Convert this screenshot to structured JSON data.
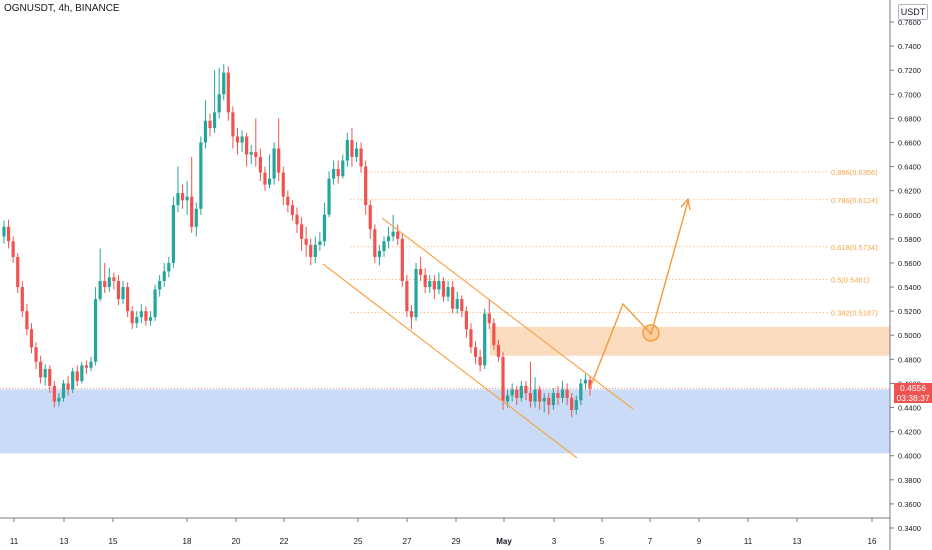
{
  "header": {
    "symbol_line": "OGNUSDT, 4h, BINANCE"
  },
  "currency_badge": "USDT",
  "price_tag": {
    "price": "0.4556",
    "countdown": "03:38:37"
  },
  "colors": {
    "up": "#26a69a",
    "down": "#ef5350",
    "support_zone": "#c9dbf6",
    "resistance_zone": "#fcdcbf",
    "fib": "#f7a54a",
    "channel": "#f7a54a",
    "projection": "#f59a3a",
    "axis_text": "#131722",
    "axis_line": "#787b86"
  },
  "chart_data": {
    "type": "candlestick",
    "title": "OGNUSDT, 4h, BINANCE",
    "ylim": [
      0.334,
      0.775
    ],
    "y_ticks": [
      "0.7600",
      "0.7400",
      "0.7200",
      "0.7000",
      "0.6800",
      "0.6600",
      "0.6400",
      "0.6200",
      "0.6000",
      "0.5800",
      "0.5600",
      "0.5400",
      "0.5200",
      "0.5000",
      "0.4800",
      "0.4600",
      "0.4400",
      "0.4200",
      "0.4000",
      "0.3800",
      "0.3600",
      "0.3400"
    ],
    "x_ticks": [
      "11",
      "13",
      "15",
      "18",
      "20",
      "22",
      "25",
      "27",
      "29",
      "May",
      "3",
      "5",
      "7",
      "9",
      "11",
      "13",
      "16"
    ],
    "candles": [
      [
        0.582,
        0.59,
        0.595,
        0.576
      ],
      [
        0.59,
        0.578,
        0.596,
        0.572
      ],
      [
        0.578,
        0.565,
        0.582,
        0.56
      ],
      [
        0.565,
        0.54,
        0.568,
        0.535
      ],
      [
        0.54,
        0.52,
        0.545,
        0.515
      ],
      [
        0.52,
        0.505,
        0.526,
        0.5
      ],
      [
        0.505,
        0.49,
        0.51,
        0.485
      ],
      [
        0.49,
        0.478,
        0.494,
        0.472
      ],
      [
        0.478,
        0.465,
        0.483,
        0.46
      ],
      [
        0.465,
        0.472,
        0.476,
        0.458
      ],
      [
        0.472,
        0.458,
        0.475,
        0.452
      ],
      [
        0.458,
        0.445,
        0.462,
        0.44
      ],
      [
        0.445,
        0.448,
        0.452,
        0.441
      ],
      [
        0.448,
        0.46,
        0.463,
        0.445
      ],
      [
        0.46,
        0.455,
        0.466,
        0.45
      ],
      [
        0.455,
        0.47,
        0.473,
        0.452
      ],
      [
        0.47,
        0.462,
        0.475,
        0.458
      ],
      [
        0.462,
        0.475,
        0.478,
        0.46
      ],
      [
        0.475,
        0.473,
        0.479,
        0.468
      ],
      [
        0.473,
        0.478,
        0.482,
        0.47
      ],
      [
        0.478,
        0.53,
        0.54,
        0.475
      ],
      [
        0.53,
        0.545,
        0.572,
        0.528
      ],
      [
        0.545,
        0.54,
        0.56,
        0.535
      ],
      [
        0.54,
        0.548,
        0.556,
        0.536
      ],
      [
        0.548,
        0.545,
        0.552,
        0.538
      ],
      [
        0.545,
        0.53,
        0.55,
        0.525
      ],
      [
        0.53,
        0.54,
        0.545,
        0.526
      ],
      [
        0.54,
        0.52,
        0.544,
        0.515
      ],
      [
        0.52,
        0.51,
        0.524,
        0.505
      ],
      [
        0.51,
        0.515,
        0.52,
        0.506
      ],
      [
        0.515,
        0.52,
        0.526,
        0.51
      ],
      [
        0.52,
        0.512,
        0.524,
        0.508
      ],
      [
        0.512,
        0.515,
        0.52,
        0.508
      ],
      [
        0.515,
        0.538,
        0.542,
        0.512
      ],
      [
        0.538,
        0.545,
        0.55,
        0.532
      ],
      [
        0.545,
        0.553,
        0.56,
        0.54
      ],
      [
        0.553,
        0.56,
        0.565,
        0.548
      ],
      [
        0.56,
        0.608,
        0.615,
        0.556
      ],
      [
        0.608,
        0.618,
        0.64,
        0.602
      ],
      [
        0.618,
        0.612,
        0.625,
        0.605
      ],
      [
        0.612,
        0.615,
        0.628,
        0.6
      ],
      [
        0.615,
        0.59,
        0.648,
        0.585
      ],
      [
        0.59,
        0.605,
        0.61,
        0.582
      ],
      [
        0.605,
        0.66,
        0.665,
        0.6
      ],
      [
        0.66,
        0.678,
        0.695,
        0.655
      ],
      [
        0.678,
        0.672,
        0.684,
        0.665
      ],
      [
        0.672,
        0.685,
        0.72,
        0.668
      ],
      [
        0.685,
        0.7,
        0.722,
        0.68
      ],
      [
        0.7,
        0.718,
        0.725,
        0.695
      ],
      [
        0.718,
        0.685,
        0.723,
        0.678
      ],
      [
        0.685,
        0.665,
        0.69,
        0.655
      ],
      [
        0.665,
        0.66,
        0.672,
        0.65
      ],
      [
        0.66,
        0.665,
        0.67,
        0.652
      ],
      [
        0.665,
        0.65,
        0.668,
        0.64
      ],
      [
        0.65,
        0.652,
        0.658,
        0.642
      ],
      [
        0.652,
        0.648,
        0.68,
        0.64
      ],
      [
        0.648,
        0.635,
        0.655,
        0.628
      ],
      [
        0.635,
        0.625,
        0.64,
        0.62
      ],
      [
        0.625,
        0.63,
        0.65,
        0.622
      ],
      [
        0.63,
        0.655,
        0.66,
        0.625
      ],
      [
        0.655,
        0.635,
        0.68,
        0.628
      ],
      [
        0.635,
        0.615,
        0.64,
        0.608
      ],
      [
        0.615,
        0.608,
        0.62,
        0.602
      ],
      [
        0.608,
        0.6,
        0.612,
        0.595
      ],
      [
        0.6,
        0.592,
        0.606,
        0.585
      ],
      [
        0.592,
        0.58,
        0.598,
        0.57
      ],
      [
        0.58,
        0.575,
        0.59,
        0.565
      ],
      [
        0.575,
        0.565,
        0.58,
        0.558
      ],
      [
        0.565,
        0.575,
        0.582,
        0.56
      ],
      [
        0.575,
        0.578,
        0.586,
        0.57
      ],
      [
        0.578,
        0.6,
        0.61,
        0.574
      ],
      [
        0.6,
        0.63,
        0.636,
        0.598
      ],
      [
        0.63,
        0.638,
        0.645,
        0.625
      ],
      [
        0.638,
        0.632,
        0.645,
        0.626
      ],
      [
        0.632,
        0.645,
        0.65,
        0.63
      ],
      [
        0.645,
        0.662,
        0.668,
        0.64
      ],
      [
        0.662,
        0.648,
        0.672,
        0.64
      ],
      [
        0.648,
        0.655,
        0.66,
        0.644
      ],
      [
        0.655,
        0.64,
        0.66,
        0.635
      ],
      [
        0.64,
        0.608,
        0.645,
        0.6
      ],
      [
        0.608,
        0.588,
        0.612,
        0.58
      ],
      [
        0.588,
        0.565,
        0.592,
        0.56
      ],
      [
        0.565,
        0.57,
        0.575,
        0.558
      ],
      [
        0.57,
        0.578,
        0.582,
        0.565
      ],
      [
        0.578,
        0.582,
        0.59,
        0.572
      ],
      [
        0.582,
        0.586,
        0.6,
        0.578
      ],
      [
        0.586,
        0.58,
        0.592,
        0.575
      ],
      [
        0.58,
        0.545,
        0.585,
        0.54
      ],
      [
        0.545,
        0.52,
        0.55,
        0.515
      ],
      [
        0.52,
        0.515,
        0.525,
        0.505
      ],
      [
        0.515,
        0.555,
        0.56,
        0.512
      ],
      [
        0.555,
        0.55,
        0.565,
        0.545
      ],
      [
        0.55,
        0.54,
        0.556,
        0.535
      ],
      [
        0.54,
        0.545,
        0.55,
        0.535
      ],
      [
        0.545,
        0.538,
        0.55,
        0.53
      ],
      [
        0.538,
        0.545,
        0.552,
        0.534
      ],
      [
        0.545,
        0.532,
        0.548,
        0.528
      ],
      [
        0.532,
        0.54,
        0.545,
        0.528
      ],
      [
        0.54,
        0.522,
        0.545,
        0.518
      ],
      [
        0.522,
        0.53,
        0.536,
        0.518
      ],
      [
        0.53,
        0.52,
        0.533,
        0.515
      ],
      [
        0.52,
        0.505,
        0.524,
        0.498
      ],
      [
        0.505,
        0.49,
        0.51,
        0.485
      ],
      [
        0.49,
        0.482,
        0.495,
        0.476
      ],
      [
        0.482,
        0.475,
        0.488,
        0.47
      ],
      [
        0.475,
        0.518,
        0.522,
        0.472
      ],
      [
        0.518,
        0.51,
        0.53,
        0.505
      ],
      [
        0.51,
        0.492,
        0.514,
        0.488
      ],
      [
        0.492,
        0.482,
        0.496,
        0.478
      ],
      [
        0.482,
        0.445,
        0.486,
        0.438
      ],
      [
        0.445,
        0.45,
        0.455,
        0.44
      ],
      [
        0.45,
        0.455,
        0.46,
        0.445
      ],
      [
        0.455,
        0.448,
        0.458,
        0.442
      ],
      [
        0.448,
        0.458,
        0.462,
        0.445
      ],
      [
        0.458,
        0.452,
        0.462,
        0.446
      ],
      [
        0.452,
        0.445,
        0.478,
        0.44
      ],
      [
        0.445,
        0.455,
        0.465,
        0.44
      ],
      [
        0.455,
        0.445,
        0.458,
        0.438
      ],
      [
        0.445,
        0.448,
        0.452,
        0.436
      ],
      [
        0.448,
        0.442,
        0.452,
        0.434
      ],
      [
        0.442,
        0.452,
        0.456,
        0.438
      ],
      [
        0.452,
        0.448,
        0.458,
        0.442
      ],
      [
        0.448,
        0.455,
        0.462,
        0.444
      ],
      [
        0.455,
        0.448,
        0.46,
        0.442
      ],
      [
        0.448,
        0.438,
        0.452,
        0.432
      ],
      [
        0.438,
        0.446,
        0.45,
        0.434
      ],
      [
        0.446,
        0.46,
        0.464,
        0.442
      ],
      [
        0.46,
        0.463,
        0.468,
        0.455
      ],
      [
        0.463,
        0.456,
        0.466,
        0.45
      ]
    ],
    "support_zone": [
      0.402,
      0.455
    ],
    "resistance_zone": [
      0.483,
      0.507
    ],
    "fib_levels": [
      {
        "label": "0.382(0.5187)",
        "value": 0.5187
      },
      {
        "label": "0.5(0.5461)",
        "value": 0.5461
      },
      {
        "label": "0.618(0.5734)",
        "value": 0.5734
      },
      {
        "label": "0.786(0.6124)",
        "value": 0.6124
      },
      {
        "label": "0.886(0.6356)",
        "value": 0.6356
      }
    ],
    "last_price": 0.4556
  }
}
